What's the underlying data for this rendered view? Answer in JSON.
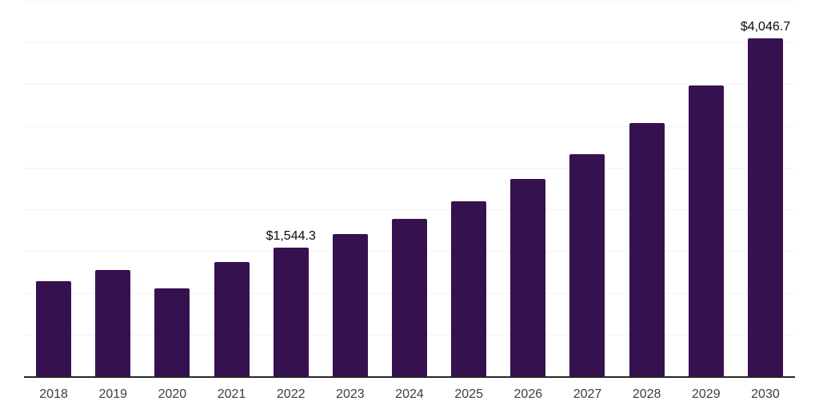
{
  "chart_data": {
    "type": "bar",
    "title": "",
    "xlabel": "",
    "ylabel": "",
    "categories": [
      "2018",
      "2019",
      "2020",
      "2021",
      "2022",
      "2023",
      "2024",
      "2025",
      "2026",
      "2027",
      "2028",
      "2029",
      "2030"
    ],
    "values": [
      1140,
      1270,
      1055,
      1365,
      1544.3,
      1705,
      1890,
      2100,
      2365,
      2665,
      3040,
      3490,
      4046.7
    ],
    "value_labels": {
      "2022": "$1,544.3",
      "2030": "$4,046.7"
    },
    "ylim": [
      0,
      4500
    ],
    "grid_step": 500,
    "grid": "on",
    "legend": "off",
    "colors": {
      "bar": "#361150",
      "axis_line": "#262626",
      "gridline": "#f2f2f2",
      "tick_label": "#3d3d3d",
      "data_label": "#0a0a0a",
      "background": "#ffffff"
    }
  }
}
